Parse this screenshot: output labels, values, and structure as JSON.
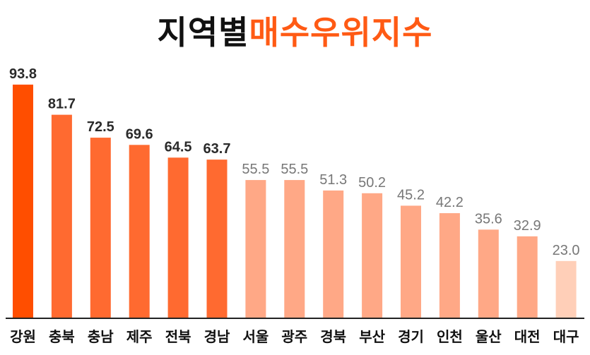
{
  "title": {
    "part1": "지역별",
    "part2": "매수우위지수"
  },
  "chart_data": {
    "type": "bar",
    "categories": [
      "강원",
      "충북",
      "충남",
      "제주",
      "전북",
      "경남",
      "서울",
      "광주",
      "경북",
      "부산",
      "경기",
      "인천",
      "울산",
      "대전",
      "대구"
    ],
    "values": [
      93.8,
      81.7,
      72.5,
      69.6,
      64.5,
      63.7,
      55.5,
      55.5,
      51.3,
      50.2,
      45.2,
      42.2,
      35.6,
      32.9,
      23.0
    ],
    "value_labels": [
      "93.8",
      "81.7",
      "72.5",
      "69.6",
      "64.5",
      "63.7",
      "55.5",
      "55.5",
      "51.3",
      "50.2",
      "45.2",
      "42.2",
      "35.6",
      "32.9",
      "23.0"
    ],
    "ylim": [
      0,
      100
    ],
    "grid": false,
    "colors": {
      "top": "#ff4e00",
      "high": "#ff6a30",
      "mid": "#ffa886",
      "low": "#ffcfb8",
      "highlight_label": "#2a2a2a",
      "dim_label": "#777777"
    }
  }
}
